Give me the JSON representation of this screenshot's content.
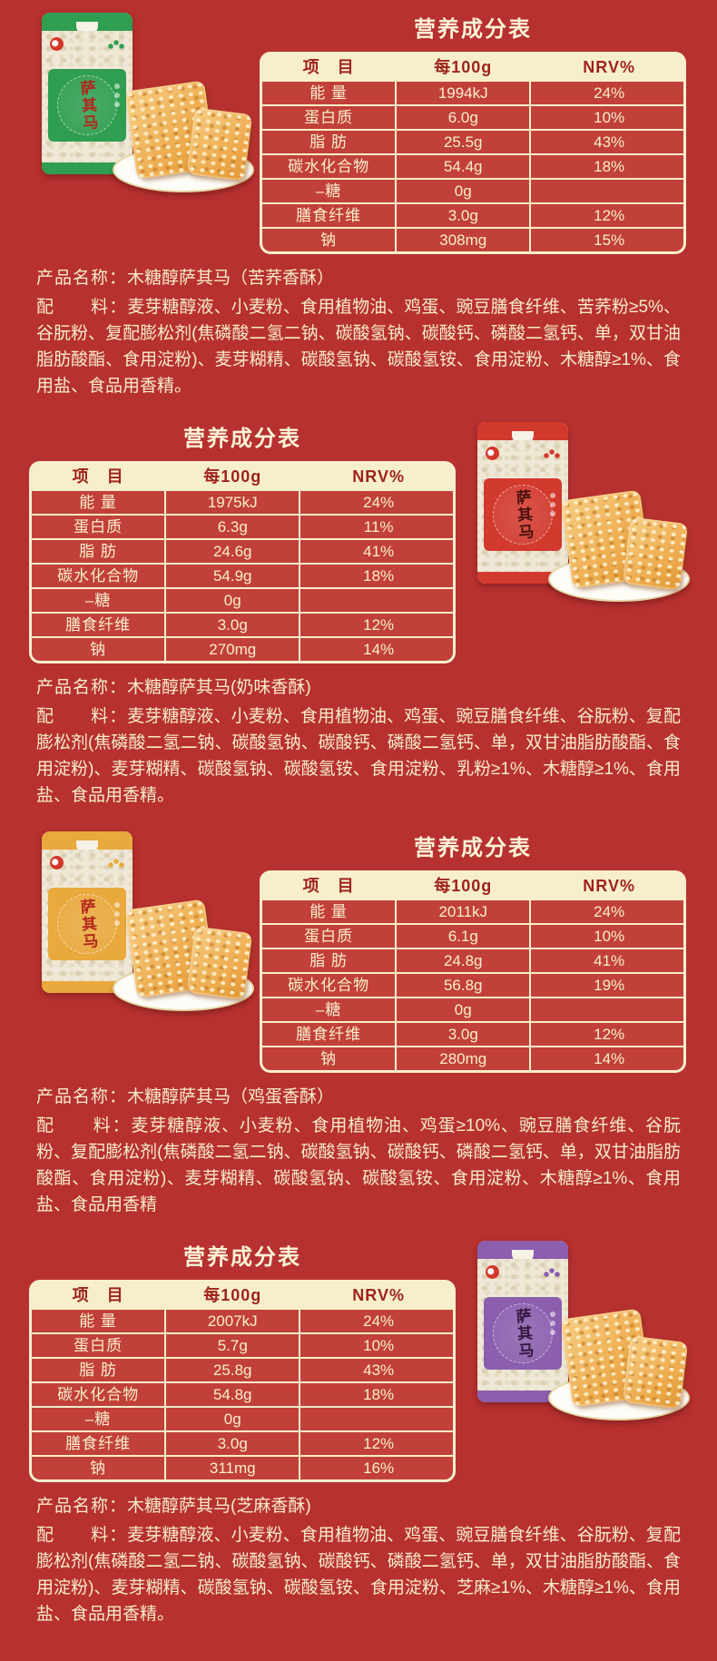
{
  "colors": {
    "page_background": "#b73130",
    "table_cell_red": "#c2403a",
    "cream": "#f7efcb",
    "header_text_red": "#9e231d",
    "body_text_cream": "#f6ecc6",
    "package_green": "#2f9e51",
    "package_red": "#d23a2e",
    "package_gold": "#e9a93d",
    "package_purple": "#8b5fae",
    "sachima_orange": "#eca849"
  },
  "header": {
    "item": "项　目",
    "per": "每100g",
    "nrv": "NRV%"
  },
  "labels": [
    "能 量",
    "蛋白质",
    "脂 肪",
    "碳水化合物",
    "–糖",
    "膳食纤维",
    "钠"
  ],
  "sections": [
    {
      "title": "营养成分表",
      "bag_title": "萨其马",
      "package_color": "#2f9e51",
      "values": [
        [
          "1994kJ",
          "24%"
        ],
        [
          "6.0g",
          "10%"
        ],
        [
          "25.5g",
          "43%"
        ],
        [
          "54.4g",
          "18%"
        ],
        [
          "0g",
          ""
        ],
        [
          "3.0g",
          "12%"
        ],
        [
          "308mg",
          "15%"
        ]
      ],
      "name_label": "产品名称：",
      "name": "木糖醇萨其马（苦荞香酥）",
      "ing_label": "配　　料：",
      "ingredients": "麦芽糖醇液、小麦粉、食用植物油、鸡蛋、豌豆膳食纤维、苦荞粉≥5%、谷朊粉、复配膨松剂(焦磷酸二氢二钠、碳酸氢钠、碳酸钙、磷酸二氢钙、单，双甘油脂肪酸酯、食用淀粉)、麦芽糊精、碳酸氢钠、碳酸氢铵、食用淀粉、木糖醇≥1%、食用盐、食品用香精。"
    },
    {
      "title": "营养成分表",
      "bag_title": "萨其马",
      "package_color": "#d23a2e",
      "values": [
        [
          "1975kJ",
          "24%"
        ],
        [
          "6.3g",
          "11%"
        ],
        [
          "24.6g",
          "41%"
        ],
        [
          "54.9g",
          "18%"
        ],
        [
          "0g",
          ""
        ],
        [
          "3.0g",
          "12%"
        ],
        [
          "270mg",
          "14%"
        ]
      ],
      "name_label": "产品名称：",
      "name": "木糖醇萨其马(奶味香酥)",
      "ing_label": "配　　料：",
      "ingredients": "麦芽糖醇液、小麦粉、食用植物油、鸡蛋、豌豆膳食纤维、谷朊粉、复配膨松剂(焦磷酸二氢二钠、碳酸氢钠、碳酸钙、磷酸二氢钙、单，双甘油脂肪酸酯、食用淀粉)、麦芽糊精、碳酸氢钠、碳酸氢铵、食用淀粉、乳粉≥1%、木糖醇≥1%、食用盐、食品用香精。"
    },
    {
      "title": "营养成分表",
      "bag_title": "萨其马",
      "package_color": "#e9a93d",
      "values": [
        [
          "2011kJ",
          "24%"
        ],
        [
          "6.1g",
          "10%"
        ],
        [
          "24.8g",
          "41%"
        ],
        [
          "56.8g",
          "19%"
        ],
        [
          "0g",
          ""
        ],
        [
          "3.0g",
          "12%"
        ],
        [
          "280mg",
          "14%"
        ]
      ],
      "name_label": "产品名称：",
      "name": "木糖醇萨其马（鸡蛋香酥）",
      "ing_label": "配　　料：",
      "ingredients": "麦芽糖醇液、小麦粉、食用植物油、鸡蛋≥10%、豌豆膳食纤维、谷朊粉、复配膨松剂(焦磷酸二氢二钠、碳酸氢钠、碳酸钙、磷酸二氢钙、单，双甘油脂肪酸酯、食用淀粉)、麦芽糊精、碳酸氢钠、碳酸氢铵、食用淀粉、木糖醇≥1%、食用盐、食品用香精"
    },
    {
      "title": "营养成分表",
      "bag_title": "萨其马",
      "package_color": "#8b5fae",
      "values": [
        [
          "2007kJ",
          "24%"
        ],
        [
          "5.7g",
          "10%"
        ],
        [
          "25.8g",
          "43%"
        ],
        [
          "54.8g",
          "18%"
        ],
        [
          "0g",
          ""
        ],
        [
          "3.0g",
          "12%"
        ],
        [
          "311mg",
          "16%"
        ]
      ],
      "name_label": "产品名称：",
      "name": "木糖醇萨其马(芝麻香酥)",
      "ing_label": "配　　料：",
      "ingredients": "麦芽糖醇液、小麦粉、食用植物油、鸡蛋、豌豆膳食纤维、谷朊粉、复配膨松剂(焦磷酸二氢二钠、碳酸氢钠、碳酸钙、磷酸二氢钙、单，双甘油脂肪酸酯、食用淀粉)、麦芽糊精、碳酸氢钠、碳酸氢铵、食用淀粉、芝麻≥1%、木糖醇≥1%、食用盐、食品用香精。"
    }
  ]
}
